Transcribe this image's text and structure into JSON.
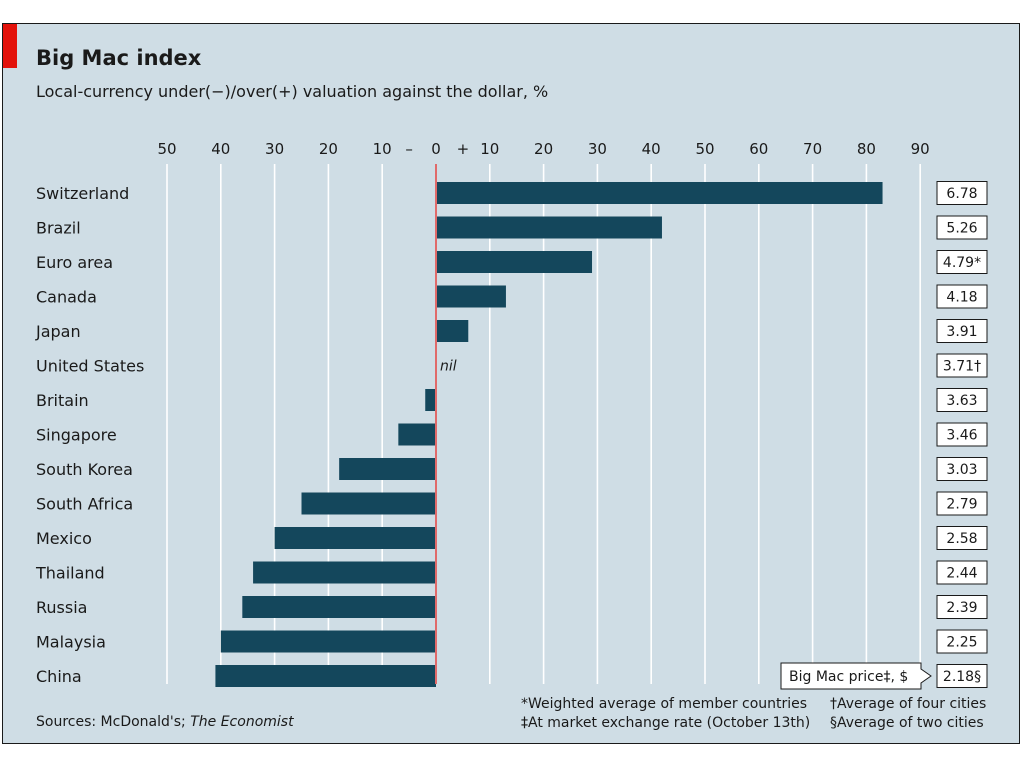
{
  "header": {
    "title": "Big Mac index",
    "subtitle": "Local-currency under(−)/over(+) valuation against the dollar, %"
  },
  "chart_data": {
    "type": "bar",
    "orientation": "horizontal",
    "categories": [
      "Switzerland",
      "Brazil",
      "Euro area",
      "Canada",
      "Japan",
      "United States",
      "Britain",
      "Singapore",
      "South Korea",
      "South Africa",
      "Mexico",
      "Thailand",
      "Russia",
      "Malaysia",
      "China"
    ],
    "values": [
      83,
      42,
      29,
      13,
      6,
      0,
      -2,
      -7,
      -18,
      -25,
      -30,
      -34,
      -36,
      -40,
      -41
    ],
    "prices": [
      "6.78",
      "5.26",
      "4.79*",
      "4.18",
      "3.91",
      "3.71†",
      "3.63",
      "3.46",
      "3.03",
      "2.79",
      "2.58",
      "2.44",
      "2.39",
      "2.25",
      "2.18§"
    ],
    "xlim": [
      -50,
      90
    ],
    "ticks": [
      {
        "v": -50,
        "label": "50"
      },
      {
        "v": -40,
        "label": "40"
      },
      {
        "v": -30,
        "label": "30"
      },
      {
        "v": -20,
        "label": "20"
      },
      {
        "v": -10,
        "label": "10"
      },
      {
        "v": 0,
        "label": "0"
      },
      {
        "v": 10,
        "label": "10"
      },
      {
        "v": 20,
        "label": "20"
      },
      {
        "v": 30,
        "label": "30"
      },
      {
        "v": 40,
        "label": "40"
      },
      {
        "v": 50,
        "label": "50"
      },
      {
        "v": 60,
        "label": "60"
      },
      {
        "v": 70,
        "label": "70"
      },
      {
        "v": 80,
        "label": "80"
      },
      {
        "v": 90,
        "label": "90"
      }
    ],
    "minus_label": "–",
    "plus_label": "+",
    "nil_label": "nil",
    "price_label": "Big Mac price‡, $",
    "grid": true,
    "bar_color": "#14475c",
    "zero_line_color": "#e06a6a"
  },
  "footer": {
    "sources_prefix": "Sources: McDonald's; ",
    "sources_italic": "The Economist",
    "note_weighted": "*Weighted average of member countries",
    "note_rate": "‡At market exchange rate (October 13th)",
    "note_four": "†Average of four cities",
    "note_two": "§Average of two cities"
  }
}
